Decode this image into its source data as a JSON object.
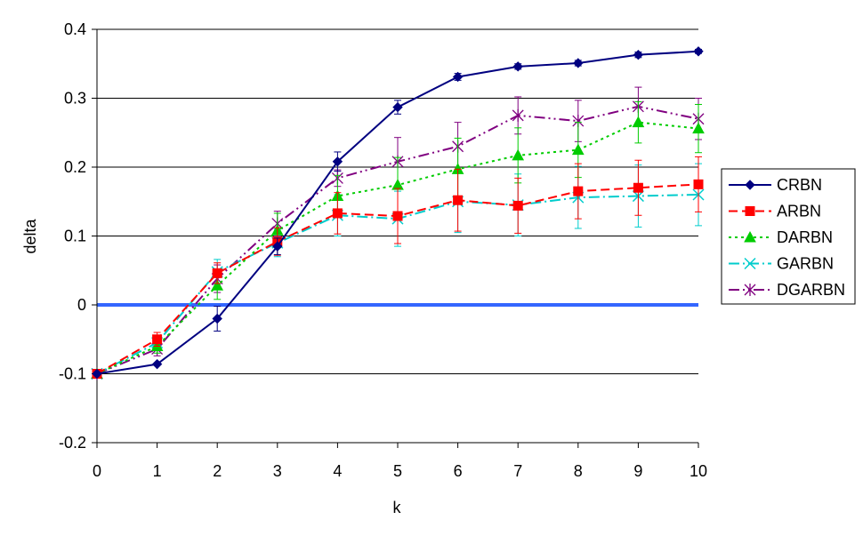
{
  "chart_data": {
    "type": "line",
    "xlabel": "k",
    "ylabel": "delta",
    "x": [
      0,
      1,
      2,
      3,
      4,
      5,
      6,
      7,
      8,
      9,
      10
    ],
    "xlim": [
      0,
      10
    ],
    "ylim": [
      -0.2,
      0.4
    ],
    "x_ticks": [
      "0",
      "1",
      "2",
      "3",
      "4",
      "5",
      "6",
      "7",
      "8",
      "9",
      "10"
    ],
    "y_ticks": [
      "0.4",
      "0.3",
      "0.2",
      "0.1",
      "0",
      "-0.1",
      "-0.2"
    ],
    "grid": "horizontal",
    "legend_position": "right",
    "reference_line": {
      "y": 0,
      "color": "#3366ff"
    },
    "series": [
      {
        "name": "CRBN",
        "color": "#000080",
        "marker": "diamond",
        "dash": "solid",
        "values": [
          -0.1,
          -0.086,
          -0.02,
          0.085,
          0.208,
          0.287,
          0.331,
          0.346,
          0.351,
          0.363,
          0.368
        ],
        "errors": [
          0,
          0,
          0.018,
          0.012,
          0.014,
          0.01,
          0.005,
          0.004,
          0.004,
          0.004,
          0.003
        ]
      },
      {
        "name": "ARBN",
        "color": "#ff0000",
        "marker": "square",
        "dash": "dash",
        "values": [
          -0.1,
          -0.05,
          0.046,
          0.092,
          0.133,
          0.129,
          0.152,
          0.144,
          0.165,
          0.17,
          0.175
        ],
        "errors": [
          0,
          0.01,
          0.015,
          0.02,
          0.03,
          0.04,
          0.045,
          0.04,
          0.04,
          0.04,
          0.04
        ]
      },
      {
        "name": "DARBN",
        "color": "#00cc00",
        "marker": "triangle",
        "dash": "dot",
        "values": [
          -0.1,
          -0.06,
          0.028,
          0.108,
          0.158,
          0.174,
          0.197,
          0.217,
          0.225,
          0.265,
          0.256
        ],
        "errors": [
          0,
          0.01,
          0.02,
          0.025,
          0.03,
          0.04,
          0.045,
          0.04,
          0.04,
          0.03,
          0.035
        ]
      },
      {
        "name": "GARBN",
        "color": "#00cccc",
        "marker": "x",
        "dash": "dashdot",
        "values": [
          -0.1,
          -0.055,
          0.048,
          0.09,
          0.13,
          0.125,
          0.15,
          0.145,
          0.156,
          0.158,
          0.16
        ],
        "errors": [
          0,
          0.01,
          0.018,
          0.02,
          0.03,
          0.04,
          0.045,
          0.045,
          0.045,
          0.045,
          0.045
        ]
      },
      {
        "name": "DGARBN",
        "color": "#800080",
        "marker": "asterisk",
        "dash": "dashdotdot",
        "values": [
          -0.1,
          -0.064,
          0.038,
          0.118,
          0.184,
          0.208,
          0.23,
          0.275,
          0.267,
          0.288,
          0.27
        ],
        "errors": [
          0,
          0.01,
          0.02,
          0.018,
          0.012,
          0.035,
          0.035,
          0.027,
          0.03,
          0.028,
          0.03
        ]
      }
    ]
  }
}
